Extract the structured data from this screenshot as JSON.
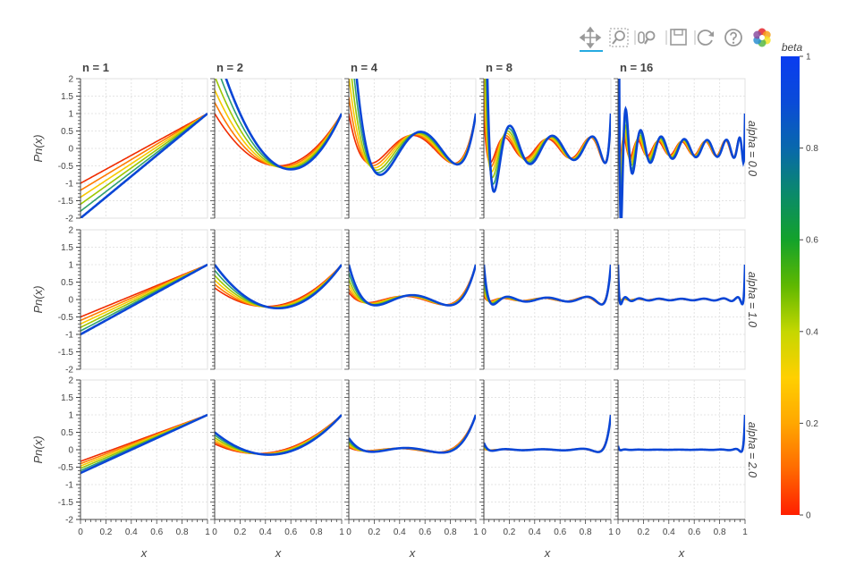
{
  "toolbar": {
    "tools": [
      {
        "name": "pan-tool",
        "icon": "move-arrows-icon",
        "active": true
      },
      {
        "name": "box-zoom-tool",
        "icon": "box-zoom-icon",
        "active": false
      },
      {
        "name": "wheel-zoom-tool",
        "icon": "wheel-zoom-icon",
        "active": false
      },
      {
        "name": "save-tool",
        "icon": "floppy-disk-icon",
        "active": false
      },
      {
        "name": "reset-tool",
        "icon": "reset-arrows-icon",
        "active": false
      },
      {
        "name": "help-tool",
        "icon": "help-circle-icon",
        "active": false
      },
      {
        "name": "bokeh-logo",
        "icon": "bokeh-logo-icon",
        "active": false
      }
    ]
  },
  "chart_data": {
    "type": "line",
    "family": "jacobi",
    "columns": [
      {
        "title": "n = 1",
        "n": 1
      },
      {
        "title": "n = 2",
        "n": 2
      },
      {
        "title": "n = 4",
        "n": 4
      },
      {
        "title": "n = 8",
        "n": 8
      },
      {
        "title": "n = 16",
        "n": 16
      }
    ],
    "rows": [
      {
        "label": "alpha = 0.0",
        "alpha": 0.0
      },
      {
        "label": "alpha = 1.0",
        "alpha": 1.0
      },
      {
        "label": "alpha = 2.0",
        "alpha": 2.0
      }
    ],
    "beta_values": [
      0.0,
      0.2,
      0.4,
      0.6,
      0.8,
      1.0
    ],
    "xlim": [
      0,
      1
    ],
    "ylim": [
      -2,
      2
    ],
    "xlabel": "x",
    "ylabel": "Pn(x)",
    "xticks": [
      "0",
      "0.2",
      "0.4",
      "0.6",
      "0.8",
      "1"
    ],
    "yticks": [
      "2",
      "1.5",
      "1",
      "0.5",
      "0",
      "-0.5",
      "-1",
      "-1.5",
      "-2"
    ],
    "grid": true,
    "colorbar": {
      "title": "beta",
      "range": [
        0,
        1
      ],
      "ticks": [
        "1",
        "0.8",
        "0.6",
        "0.4",
        "0.2",
        "0"
      ],
      "palette": [
        "#ff1f00",
        "#ff6a00",
        "#ffa700",
        "#ffd000",
        "#c5d700",
        "#5fb800",
        "#13a22b",
        "#0a8a6a",
        "#0868ac",
        "#0a4bd8",
        "#0a3cf0"
      ]
    },
    "line_palette": [
      "#f02c00",
      "#ff7a00",
      "#f7c800",
      "#9bc700",
      "#2f9f6e",
      "#0a46d6"
    ]
  }
}
